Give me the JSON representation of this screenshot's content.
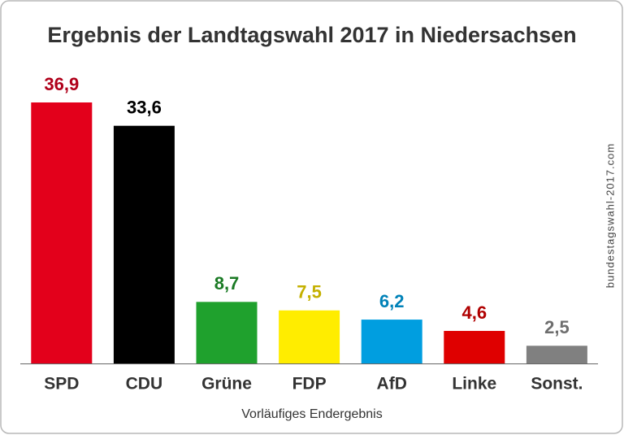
{
  "chart_data": {
    "type": "bar",
    "title": "Ergebnis der Landtagswahl 2017 in Niedersachsen",
    "subtitle": "Vorläufiges Endergebnis",
    "watermark": "bundestagswahl-2017.com",
    "categories": [
      "SPD",
      "CDU",
      "Grüne",
      "FDP",
      "AfD",
      "Linke",
      "Sonst."
    ],
    "values": [
      36.9,
      33.6,
      8.7,
      7.5,
      6.2,
      4.6,
      2.5
    ],
    "value_labels": [
      "36,9",
      "33,6",
      "8,7",
      "7,5",
      "6,2",
      "4,6",
      "2,5"
    ],
    "colors": [
      "#e3001b",
      "#000000",
      "#1fa12d",
      "#ffed00",
      "#009ee0",
      "#df0000",
      "#808080"
    ],
    "label_colors": [
      "#b0001a",
      "#000000",
      "#1a7a24",
      "#c4b000",
      "#0082b8",
      "#b00000",
      "#6e6e6e"
    ]
  }
}
